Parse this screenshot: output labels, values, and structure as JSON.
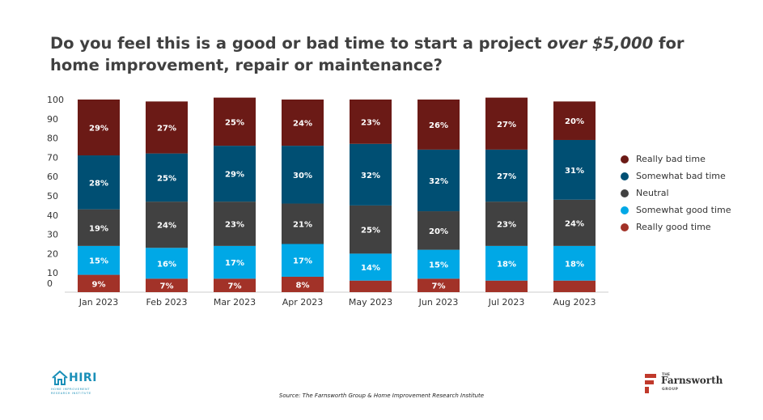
{
  "title_parts": {
    "before": "Do you feel this is a good or bad time to start a project ",
    "emphasis": "over $5,000",
    "after": " for home improvement, repair or maintenance?"
  },
  "chart_data": {
    "type": "bar",
    "stacked": true,
    "categories": [
      "Jan 2023",
      "Feb 2023",
      "Mar 2023",
      "Apr 2023",
      "May 2023",
      "Jun 2023",
      "Jul 2023",
      "Aug 2023"
    ],
    "ylim": [
      0,
      100
    ],
    "yticks": [
      0,
      10,
      20,
      30,
      40,
      50,
      60,
      70,
      80,
      90,
      100
    ],
    "xlabel": "",
    "ylabel": "",
    "grid": false,
    "legend_position": "right",
    "series": [
      {
        "name": "Really good time",
        "color": "#a23228",
        "values": [
          9,
          7,
          7,
          8,
          6,
          7,
          6,
          6
        ],
        "labels": [
          "9%",
          "7%",
          "7%",
          "8%",
          "",
          "7%",
          "",
          ""
        ]
      },
      {
        "name": "Somewhat good time",
        "color": "#00a8e6",
        "values": [
          15,
          16,
          17,
          17,
          14,
          15,
          18,
          18
        ],
        "labels": [
          "15%",
          "16%",
          "17%",
          "17%",
          "14%",
          "15%",
          "18%",
          "18%"
        ]
      },
      {
        "name": "Neutral",
        "color": "#414141",
        "values": [
          19,
          24,
          23,
          21,
          25,
          20,
          23,
          24
        ],
        "labels": [
          "19%",
          "24%",
          "23%",
          "21%",
          "25%",
          "20%",
          "23%",
          "24%"
        ]
      },
      {
        "name": "Somewhat bad time",
        "color": "#004f73",
        "values": [
          28,
          25,
          29,
          30,
          32,
          32,
          27,
          31
        ],
        "labels": [
          "28%",
          "25%",
          "29%",
          "30%",
          "32%",
          "32%",
          "27%",
          "31%"
        ]
      },
      {
        "name": "Really bad time",
        "color": "#6b1a16",
        "values": [
          29,
          27,
          25,
          24,
          23,
          26,
          27,
          20
        ],
        "labels": [
          "29%",
          "27%",
          "25%",
          "24%",
          "23%",
          "26%",
          "27%",
          "20%"
        ]
      }
    ]
  },
  "legend": [
    {
      "label": "Really bad time",
      "color": "#6b1a16"
    },
    {
      "label": "Somewhat bad time",
      "color": "#004f73"
    },
    {
      "label": "Neutral",
      "color": "#414141"
    },
    {
      "label": "Somewhat good time",
      "color": "#00a8e6"
    },
    {
      "label": "Really good time",
      "color": "#a23228"
    }
  ],
  "source": "Source: The Farnsworth Group & Home Improvement Research Institute",
  "logos": {
    "hiri": {
      "name": "HIRI",
      "tagline": "HOME IMPROVEMENT RESEARCH INSTITUTE",
      "color": "#1a8fb8"
    },
    "farnsworth": {
      "the": "THE",
      "name": "Farnsworth",
      "group": "GROUP",
      "mark_color": "#c0392b"
    }
  }
}
